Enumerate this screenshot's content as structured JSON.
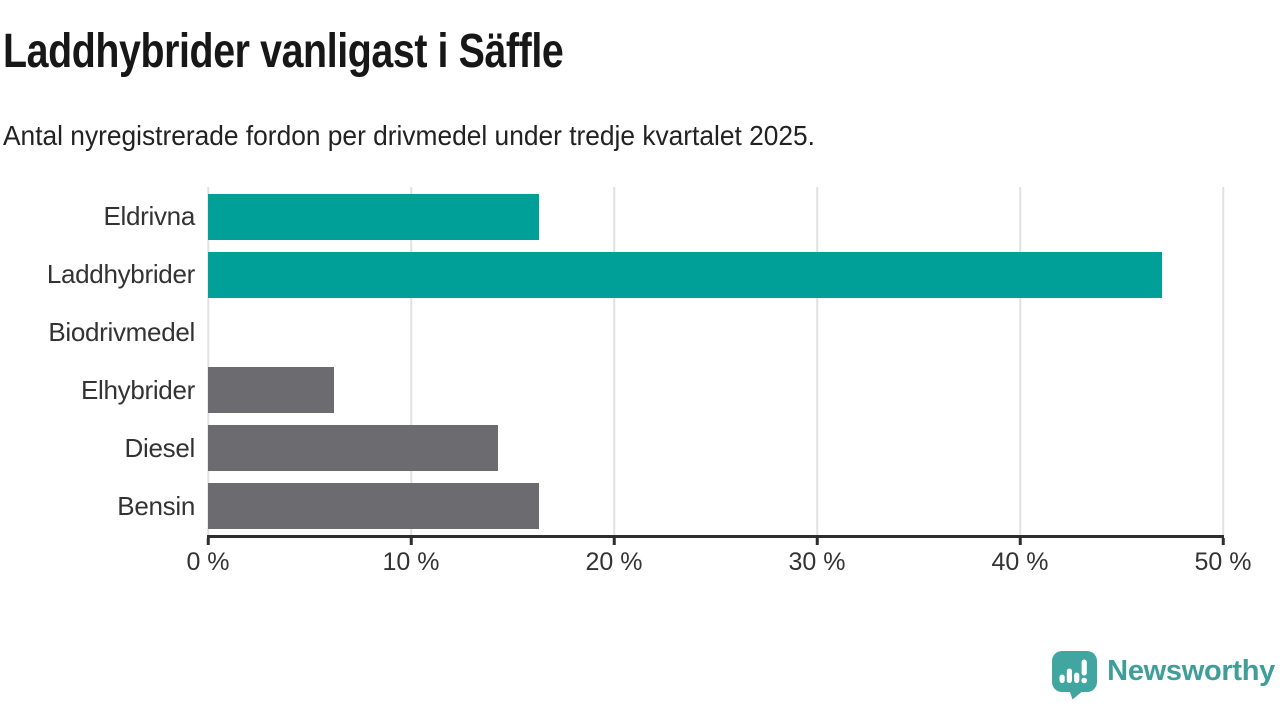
{
  "header": {
    "title": "Laddhybrider vanligast i Säffle",
    "subtitle": "Antal nyregistrerade fordon per drivmedel under tredje kvartalet 2025."
  },
  "chart_data": {
    "type": "bar",
    "orientation": "horizontal",
    "title": "Laddhybrider vanligast i Säffle",
    "subtitle": "Antal nyregistrerade fordon per drivmedel under tredje kvartalet 2025.",
    "categories": [
      "Eldrivna",
      "Laddhybrider",
      "Biodrivmedel",
      "Elhybrider",
      "Diesel",
      "Bensin"
    ],
    "values": [
      16.3,
      47,
      0,
      6.2,
      14.3,
      16.3
    ],
    "unit": "%",
    "xlim": [
      0,
      50
    ],
    "x_ticks": [
      0,
      10,
      20,
      30,
      40,
      50
    ],
    "x_tick_labels": [
      "0 %",
      "10 %",
      "20 %",
      "30 %",
      "40 %",
      "50 %"
    ],
    "grid": "vertical-gridlines",
    "legend": "none",
    "bar_color_keys": [
      "accent",
      "accent",
      "muted",
      "muted",
      "muted",
      "muted"
    ],
    "colors": {
      "accent": "#00A099",
      "muted": "#6B6B70",
      "gridline": "#E1E1E1",
      "axis": "#2E2E2E"
    }
  },
  "footer": {
    "brand": "Newsworthy",
    "brand_color": "#3F9E99",
    "logo_bubble_color": "#41A6A0",
    "logo_icon": "newsworthy-bubble-chart-icon"
  }
}
